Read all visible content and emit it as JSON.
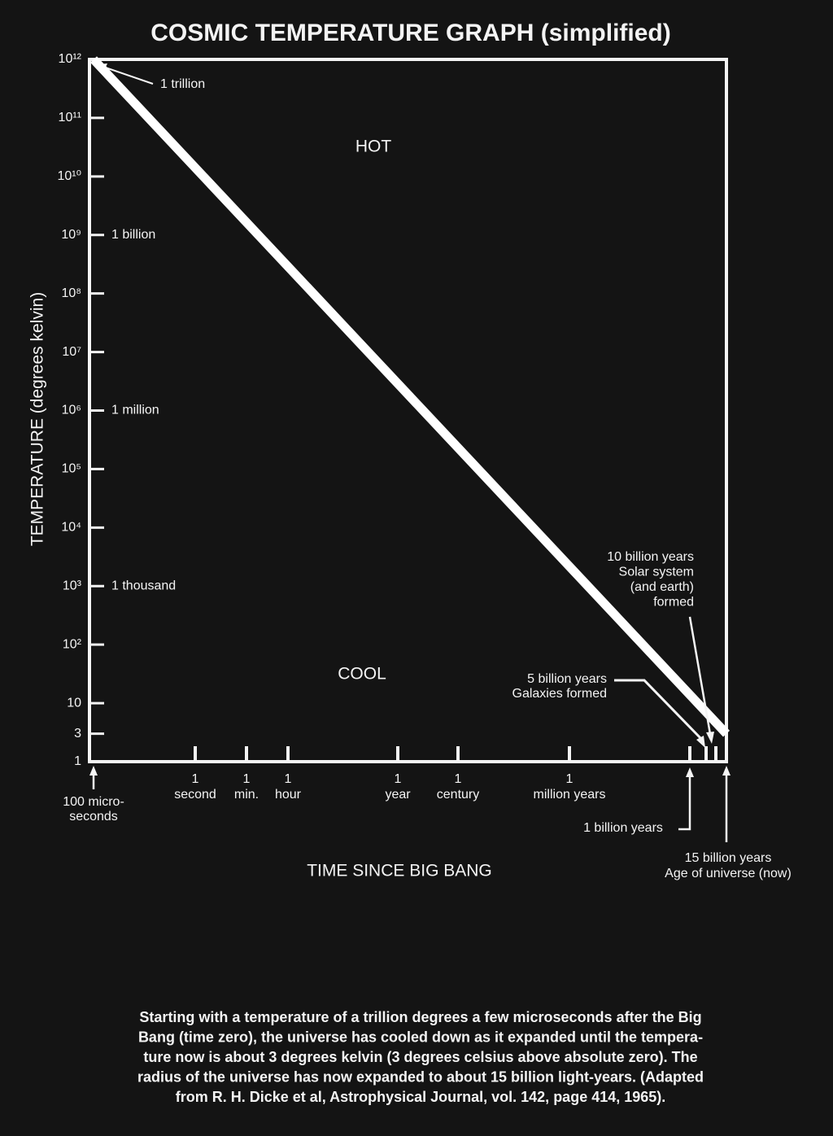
{
  "chart_data": {
    "type": "line",
    "title": "COSMIC TEMPERATURE GRAPH (simplified)",
    "y_label": "TEMPERATURE (degrees kelvin)",
    "x_label": "TIME SINCE BIG BANG",
    "log_y": true,
    "color": "#ffffff",
    "ylim": [
      1,
      1000000000000
    ],
    "yticks": [
      {
        "value": 1000000000000,
        "label": "10¹²"
      },
      {
        "value": 100000000000,
        "label": "10¹¹"
      },
      {
        "value": 10000000000,
        "label": "10¹⁰"
      },
      {
        "value": 1000000000,
        "label": "10⁹"
      },
      {
        "value": 100000000,
        "label": "10⁸"
      },
      {
        "value": 10000000,
        "label": "10⁷"
      },
      {
        "value": 1000000,
        "label": "10⁶"
      },
      {
        "value": 100000,
        "label": "10⁵"
      },
      {
        "value": 10000,
        "label": "10⁴"
      },
      {
        "value": 1000,
        "label": "10³"
      },
      {
        "value": 100,
        "label": "10²"
      },
      10,
      3,
      1
    ],
    "y_named_levels": [
      {
        "value": 1000000000000,
        "label": "1 trillion"
      },
      {
        "value": 1000000000,
        "label": "1 billion"
      },
      {
        "value": 1000000,
        "label": "1 million"
      },
      {
        "value": 1000,
        "label": "1 thousand"
      }
    ],
    "categories": [
      [
        "100 micro-",
        "seconds"
      ],
      [
        "1",
        "second"
      ],
      [
        "1",
        "min."
      ],
      [
        "1",
        "hour"
      ],
      [
        "1",
        "year"
      ],
      [
        "1",
        "century"
      ],
      [
        "1",
        "million years"
      ],
      [
        "1 billion years"
      ],
      [
        "5 billion years",
        "Galaxies formed"
      ],
      [
        "10 billion years",
        "Solar system",
        "(and earth)",
        "formed"
      ],
      [
        "15 billion years",
        "Age of universe (now)"
      ]
    ],
    "line": {
      "values": [
        1000000000000,
        3
      ]
    },
    "regions": [
      "HOT",
      "COOL"
    ],
    "caption": [
      "Starting with a temperature of a trillion degrees a few microseconds after the Big",
      "Bang (time zero), the universe has cooled down as it expanded until the tempera-",
      "ture now is about 3 degrees kelvin (3 degrees celsius above absolute zero). The",
      "radius of the universe has now expanded to about 15 billion light-years. (Adapted",
      "from R. H. Dicke et al, Astrophysical Journal, vol. 142, page 414, 1965)."
    ]
  }
}
